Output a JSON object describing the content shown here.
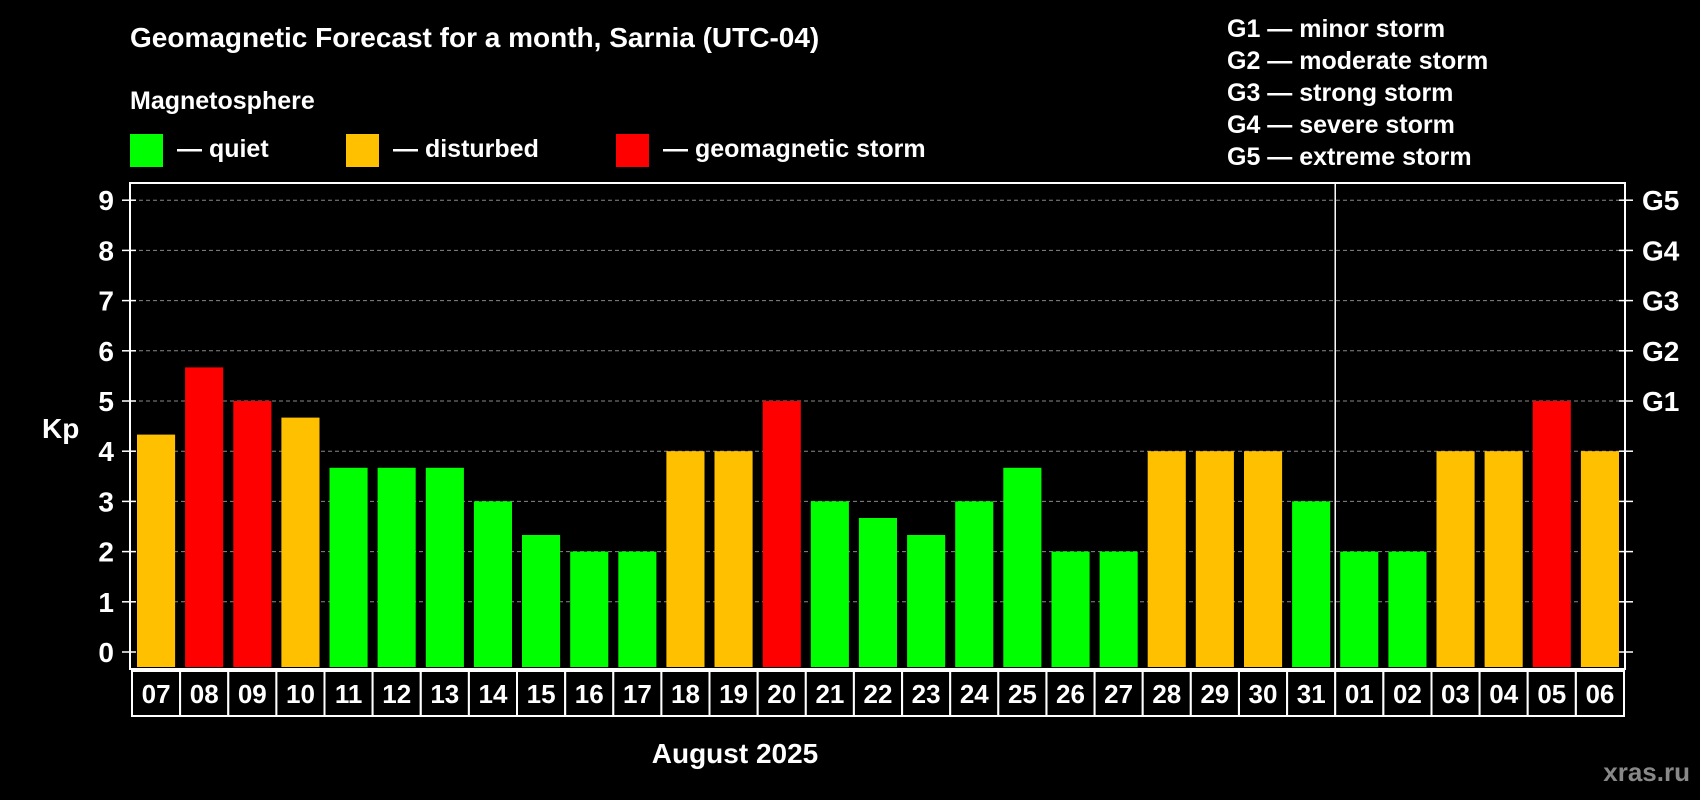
{
  "chart_data": {
    "type": "bar",
    "title": "Geomagnetic Forecast for a month, Sarnia (UTC-04)",
    "xlabel": "August 2025",
    "ylabel": "Kp",
    "ylim": [
      0,
      9
    ],
    "yticks": [
      "0",
      "1",
      "2",
      "3",
      "4",
      "5",
      "6",
      "7",
      "8",
      "9"
    ],
    "right_ticks": [
      {
        "kp": 5,
        "label": "G1"
      },
      {
        "kp": 6,
        "label": "G2"
      },
      {
        "kp": 7,
        "label": "G3"
      },
      {
        "kp": 8,
        "label": "G4"
      },
      {
        "kp": 9,
        "label": "G5"
      }
    ],
    "categories": [
      "07",
      "08",
      "09",
      "10",
      "11",
      "12",
      "13",
      "14",
      "15",
      "16",
      "17",
      "18",
      "19",
      "20",
      "21",
      "22",
      "23",
      "24",
      "25",
      "26",
      "27",
      "28",
      "29",
      "30",
      "31",
      "01",
      "02",
      "03",
      "04",
      "05",
      "06"
    ],
    "values": [
      4.33,
      5.67,
      5,
      4.67,
      3.67,
      3.67,
      3.67,
      3,
      2.33,
      2,
      2,
      4,
      4,
      5,
      3,
      2.67,
      2.33,
      3,
      3.67,
      2,
      2,
      4,
      4,
      4,
      3,
      2,
      2,
      4,
      4,
      5,
      4
    ],
    "levels": [
      "disturbed",
      "storm",
      "storm",
      "disturbed",
      "quiet",
      "quiet",
      "quiet",
      "quiet",
      "quiet",
      "quiet",
      "quiet",
      "disturbed",
      "disturbed",
      "storm",
      "quiet",
      "quiet",
      "quiet",
      "quiet",
      "quiet",
      "quiet",
      "quiet",
      "disturbed",
      "disturbed",
      "disturbed",
      "quiet",
      "quiet",
      "quiet",
      "disturbed",
      "disturbed",
      "storm",
      "disturbed"
    ],
    "month_divider_after": "31",
    "grid": true
  },
  "legend": {
    "heading": "Magnetosphere",
    "items": [
      {
        "key": "quiet",
        "label": "— quiet",
        "color": "#00ff00"
      },
      {
        "key": "disturbed",
        "label": "— disturbed",
        "color": "#ffc000"
      },
      {
        "key": "storm",
        "label": "— geomagnetic storm",
        "color": "#ff0000"
      }
    ]
  },
  "storm_scale": [
    "G1 — minor storm",
    "G2 — moderate storm",
    "G3 — strong storm",
    "G4 — severe storm",
    "G5 — extreme storm"
  ],
  "watermark": "xras.ru"
}
